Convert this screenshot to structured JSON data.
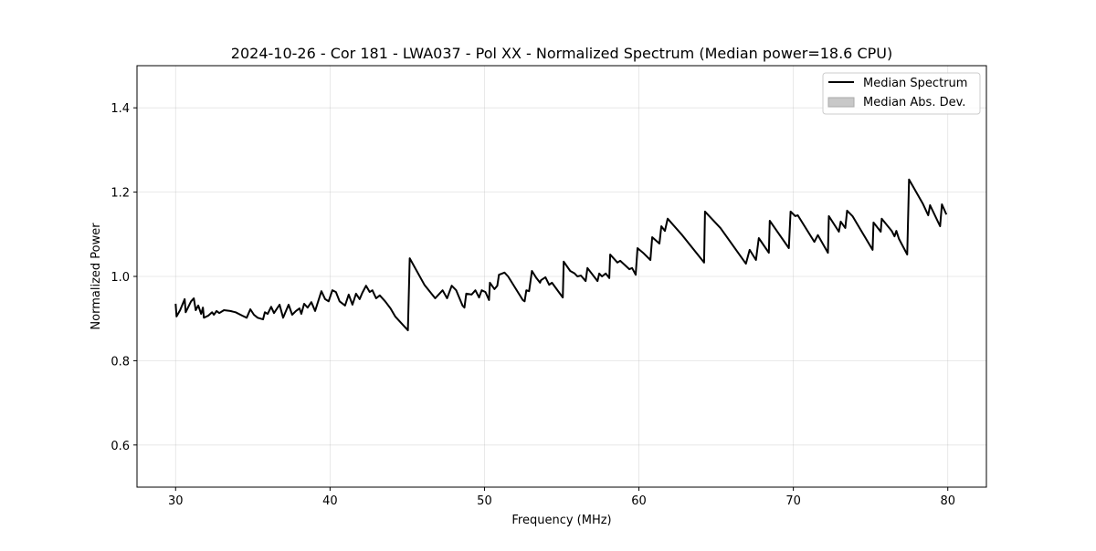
{
  "chart_data": {
    "type": "line",
    "title": "2024-10-26 - Cor 181 - LWA037 - Pol XX - Normalized Spectrum (Median power=18.6 CPU)",
    "xlabel": "Frequency (MHz)",
    "ylabel": "Normalized Power",
    "xlim": [
      27.5,
      82.5
    ],
    "ylim": [
      0.5,
      1.5
    ],
    "xticks": [
      30,
      40,
      50,
      60,
      70,
      80
    ],
    "xtick_labels": [
      "30",
      "40",
      "50",
      "60",
      "70",
      "80"
    ],
    "yticks": [
      0.6,
      0.8,
      1.0,
      1.2,
      1.4
    ],
    "ytick_labels": [
      "0.6",
      "0.8",
      "1.0",
      "1.2",
      "1.4"
    ],
    "grid": true,
    "legend_position": "top-right",
    "legend": [
      {
        "label": "Median Spectrum",
        "kind": "line",
        "color": "#000000"
      },
      {
        "label": "Median Abs. Dev.",
        "kind": "patch",
        "color": "#c8c8c8"
      }
    ],
    "series": [
      {
        "name": "Median Spectrum",
        "color": "#000000",
        "x": [
          30.0,
          30.06,
          30.29,
          30.59,
          30.65,
          31.0,
          31.18,
          31.3,
          31.47,
          31.65,
          31.77,
          31.83,
          32.12,
          32.36,
          32.48,
          32.65,
          32.83,
          33.13,
          33.54,
          33.89,
          34.31,
          34.6,
          34.84,
          35.07,
          35.31,
          35.66,
          35.78,
          35.96,
          36.19,
          36.37,
          36.73,
          36.96,
          37.32,
          37.55,
          37.79,
          38.02,
          38.14,
          38.32,
          38.55,
          38.79,
          39.03,
          39.44,
          39.68,
          39.91,
          40.15,
          40.38,
          40.62,
          40.97,
          41.21,
          41.45,
          41.68,
          41.92,
          42.09,
          42.33,
          42.57,
          42.74,
          42.98,
          43.22,
          43.57,
          43.92,
          44.22,
          45.04,
          45.16,
          46.11,
          46.81,
          47.29,
          47.58,
          47.88,
          48.17,
          48.58,
          48.7,
          48.82,
          49.17,
          49.41,
          49.65,
          49.82,
          50.06,
          50.29,
          50.35,
          50.65,
          50.83,
          50.94,
          51.3,
          51.53,
          52.48,
          52.6,
          52.71,
          52.89,
          53.07,
          53.36,
          53.6,
          53.66,
          53.95,
          54.19,
          54.37,
          55.07,
          55.13,
          55.55,
          55.84,
          56.02,
          56.25,
          56.55,
          56.67,
          57.32,
          57.43,
          57.61,
          57.85,
          58.08,
          58.14,
          58.61,
          58.79,
          59.38,
          59.56,
          59.79,
          59.91,
          60.27,
          60.74,
          60.86,
          61.33,
          61.45,
          61.68,
          61.86,
          62.8,
          64.22,
          64.28,
          65.28,
          66.93,
          67.17,
          67.58,
          67.76,
          68.41,
          68.47,
          69.71,
          69.82,
          70.12,
          70.29,
          71.36,
          71.59,
          72.24,
          72.3,
          72.95,
          73.07,
          73.36,
          73.48,
          73.83,
          75.13,
          75.19,
          75.66,
          75.72,
          76.37,
          76.55,
          76.67,
          76.84,
          77.37,
          77.49,
          78.38,
          78.73,
          78.85,
          79.5,
          79.62,
          79.91
        ],
        "y": [
          0.935,
          0.905,
          0.92,
          0.946,
          0.915,
          0.941,
          0.948,
          0.92,
          0.931,
          0.911,
          0.926,
          0.902,
          0.907,
          0.915,
          0.909,
          0.918,
          0.913,
          0.92,
          0.918,
          0.915,
          0.907,
          0.902,
          0.922,
          0.909,
          0.902,
          0.898,
          0.915,
          0.911,
          0.928,
          0.913,
          0.933,
          0.902,
          0.933,
          0.909,
          0.918,
          0.924,
          0.911,
          0.935,
          0.926,
          0.939,
          0.918,
          0.965,
          0.946,
          0.941,
          0.967,
          0.963,
          0.941,
          0.931,
          0.957,
          0.933,
          0.959,
          0.946,
          0.961,
          0.978,
          0.963,
          0.967,
          0.948,
          0.955,
          0.941,
          0.924,
          0.905,
          0.872,
          1.043,
          0.98,
          0.948,
          0.967,
          0.948,
          0.978,
          0.967,
          0.931,
          0.926,
          0.959,
          0.957,
          0.967,
          0.95,
          0.967,
          0.963,
          0.944,
          0.985,
          0.97,
          0.978,
          1.004,
          1.009,
          1.0,
          0.944,
          0.941,
          0.967,
          0.965,
          1.013,
          0.996,
          0.985,
          0.991,
          0.998,
          0.98,
          0.985,
          0.95,
          1.035,
          1.013,
          1.007,
          1.0,
          1.002,
          0.989,
          1.02,
          0.989,
          1.007,
          1.0,
          1.007,
          0.996,
          1.052,
          1.033,
          1.037,
          1.017,
          1.02,
          1.004,
          1.067,
          1.056,
          1.039,
          1.093,
          1.078,
          1.119,
          1.108,
          1.137,
          1.098,
          1.033,
          1.154,
          1.115,
          1.03,
          1.063,
          1.039,
          1.091,
          1.056,
          1.132,
          1.067,
          1.154,
          1.143,
          1.145,
          1.082,
          1.098,
          1.056,
          1.143,
          1.106,
          1.13,
          1.115,
          1.156,
          1.143,
          1.063,
          1.128,
          1.106,
          1.137,
          1.108,
          1.095,
          1.108,
          1.089,
          1.052,
          1.23,
          1.173,
          1.145,
          1.169,
          1.119,
          1.171,
          1.147
        ]
      }
    ]
  }
}
